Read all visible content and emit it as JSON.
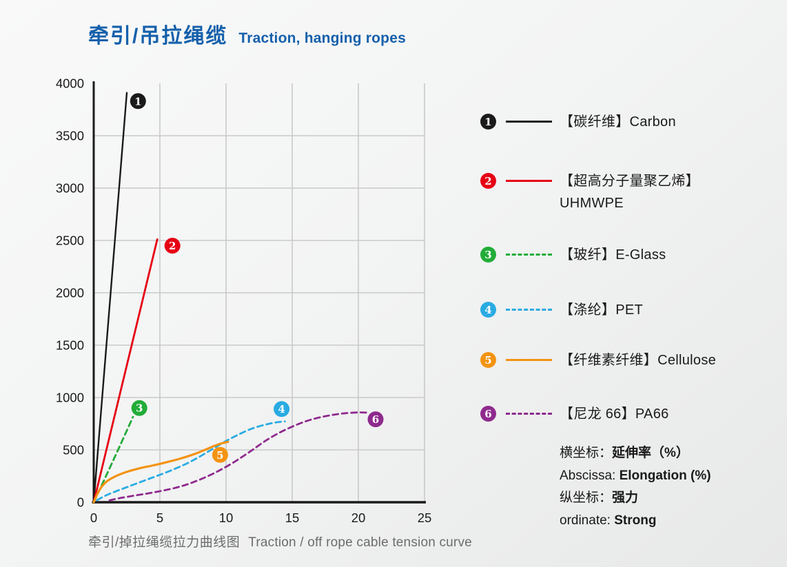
{
  "header": {
    "title_zh": "牵引/吊拉绳缆",
    "title_en": "Traction, hanging ropes"
  },
  "chart_data": {
    "type": "line",
    "title": "牵引/掉拉绳缆拉力曲线图 Traction / off rope cable tension curve",
    "xlabel": "Elongation 延伸率 (%)",
    "ylabel": "Strong 强力",
    "xlim": [
      0,
      25
    ],
    "ylim": [
      0,
      4000
    ],
    "x_ticks": [
      0,
      5,
      10,
      15,
      20,
      25
    ],
    "y_ticks": [
      0,
      500,
      1000,
      1500,
      2000,
      2500,
      3000,
      3500,
      4000
    ],
    "grid": true,
    "colors": {
      "grid": "#c9c9c9",
      "axis": "#1a1a1a",
      "tick_text": "#1a1a1a"
    },
    "legend_position": "right",
    "series": [
      {
        "number": "1",
        "name_zh": "【碳纤维】",
        "name_en": "Carbon",
        "color": "#1a1a1a",
        "style": "solid",
        "stroke_width": 2.4,
        "points": [
          [
            0,
            0
          ],
          [
            2.5,
            3910
          ]
        ],
        "badge": [
          3.35,
          3830
        ]
      },
      {
        "number": "2",
        "name_zh": "【超高分子量聚乙烯】",
        "name_en": "UHMWPE",
        "color": "#e60014",
        "style": "solid",
        "stroke_width": 2.8,
        "points": [
          [
            0,
            0
          ],
          [
            4.8,
            2510
          ]
        ],
        "badge": [
          5.95,
          2450
        ]
      },
      {
        "number": "3",
        "name_zh": "【玻纤】",
        "name_en": "E-Glass",
        "color": "#22ac38",
        "style": "dashed",
        "stroke_width": 2.8,
        "points": [
          [
            0,
            0
          ],
          [
            1.0,
            270
          ],
          [
            2.0,
            545
          ],
          [
            2.97,
            815
          ]
        ],
        "badge": [
          3.45,
          900
        ]
      },
      {
        "number": "4",
        "name_zh": "【涤纶】",
        "name_en": "PET",
        "color": "#29abe2",
        "style": "dashed",
        "stroke_width": 2.8,
        "points": [
          [
            0.25,
            20
          ],
          [
            1,
            70
          ],
          [
            2,
            120
          ],
          [
            3,
            168
          ],
          [
            4,
            215
          ],
          [
            5,
            262
          ],
          [
            6,
            312
          ],
          [
            7,
            368
          ],
          [
            8,
            435
          ],
          [
            9,
            510
          ],
          [
            10,
            585
          ],
          [
            11,
            650
          ],
          [
            12,
            705
          ],
          [
            13,
            742
          ],
          [
            13.8,
            763
          ],
          [
            14.45,
            772
          ]
        ],
        "badge": [
          14.2,
          890
        ]
      },
      {
        "number": "5",
        "name_zh": "【纤维素纤维】",
        "name_en": "Cellulose",
        "color": "#f39312",
        "style": "solid",
        "stroke_width": 3.2,
        "points": [
          [
            0,
            0
          ],
          [
            0.4,
            110
          ],
          [
            0.9,
            190
          ],
          [
            1.6,
            245
          ],
          [
            2.5,
            290
          ],
          [
            3.5,
            325
          ],
          [
            4.5,
            352
          ],
          [
            5.5,
            382
          ],
          [
            6.5,
            415
          ],
          [
            7.5,
            455
          ],
          [
            8.3,
            495
          ],
          [
            9.0,
            532
          ],
          [
            9.6,
            560
          ],
          [
            10.15,
            577
          ]
        ],
        "badge": [
          9.55,
          452
        ]
      },
      {
        "number": "6",
        "name_zh": "【尼龙 66】",
        "name_en": "PA66",
        "color": "#8e2a8d",
        "style": "dashed",
        "stroke_width": 2.8,
        "points": [
          [
            1.2,
            18
          ],
          [
            2,
            40
          ],
          [
            3,
            62
          ],
          [
            4,
            82
          ],
          [
            5,
            105
          ],
          [
            6,
            132
          ],
          [
            7,
            168
          ],
          [
            8,
            215
          ],
          [
            9,
            272
          ],
          [
            10,
            338
          ],
          [
            11,
            415
          ],
          [
            12,
            500
          ],
          [
            13,
            588
          ],
          [
            14,
            662
          ],
          [
            15,
            722
          ],
          [
            16,
            772
          ],
          [
            17,
            808
          ],
          [
            18,
            833
          ],
          [
            19,
            850
          ],
          [
            20,
            858
          ],
          [
            20.65,
            856
          ]
        ],
        "badge": [
          21.3,
          792
        ]
      }
    ]
  },
  "legend": {
    "items": [
      {
        "number": "1",
        "line1": "【碳纤维】Carbon",
        "line2": ""
      },
      {
        "number": "2",
        "line1": "【超高分子量聚乙烯】",
        "line2": "UHMWPE"
      },
      {
        "number": "3",
        "line1": "【玻纤】E-Glass",
        "line2": ""
      },
      {
        "number": "4",
        "line1": "【涤纶】PET",
        "line2": ""
      },
      {
        "number": "5",
        "line1": "【纤维素纤维】Cellulose",
        "line2": ""
      },
      {
        "number": "6",
        "line1": "【尼龙 66】PA66",
        "line2": ""
      }
    ]
  },
  "notes": [
    {
      "prefix": "横坐标：",
      "bold": "延伸率（%）"
    },
    {
      "prefix": "Abscissa: ",
      "bold": "Elongation (%)"
    },
    {
      "prefix": "纵坐标：",
      "bold": "强力"
    },
    {
      "prefix": "ordinate: ",
      "bold": "Strong"
    }
  ],
  "caption": {
    "zh": "牵引/掉拉绳缆拉力曲线图",
    "en": "Traction / off rope cable tension curve"
  }
}
